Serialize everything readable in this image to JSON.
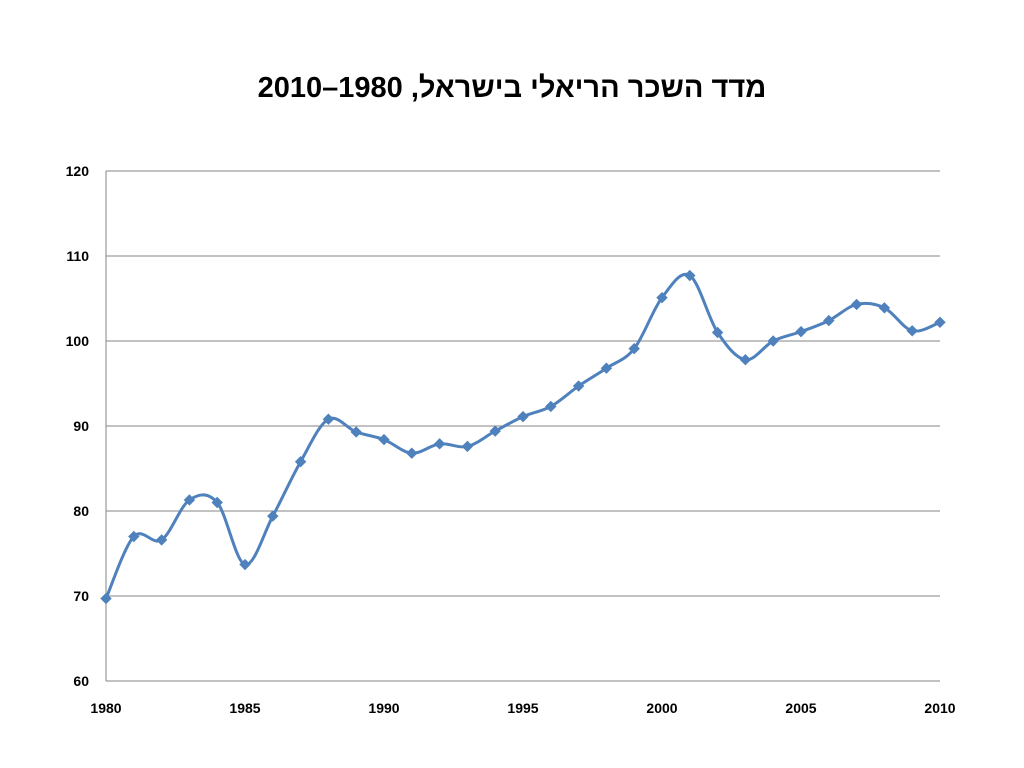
{
  "chart_data": {
    "type": "line",
    "title": "מדד השכר הריאלי בישראל, 1980–2010",
    "xlabel": "",
    "ylabel": "",
    "xlim": [
      1980,
      2010
    ],
    "ylim": [
      60,
      120
    ],
    "x_ticks": [
      1980,
      1985,
      1990,
      1995,
      2000,
      2005,
      2010
    ],
    "y_ticks": [
      60,
      70,
      80,
      90,
      100,
      110,
      120
    ],
    "grid": "horizontal",
    "legend": "none",
    "series": [
      {
        "color": "#4f81bd",
        "marker": "diamond",
        "smooth": true,
        "x": [
          1980,
          1981,
          1982,
          1983,
          1984,
          1985,
          1986,
          1987,
          1988,
          1989,
          1990,
          1991,
          1992,
          1993,
          1994,
          1995,
          1996,
          1997,
          1998,
          1999,
          2000,
          2001,
          2002,
          2003,
          2004,
          2005,
          2006,
          2007,
          2008,
          2009,
          2010
        ],
        "values": [
          69.7,
          77.0,
          76.6,
          81.3,
          81.0,
          73.7,
          79.4,
          85.8,
          90.8,
          89.3,
          88.4,
          86.8,
          87.9,
          87.6,
          89.4,
          91.1,
          92.3,
          94.7,
          96.8,
          99.1,
          105.1,
          107.7,
          101.0,
          97.8,
          100.0,
          101.1,
          102.4,
          104.3,
          103.9,
          101.2,
          102.2
        ]
      }
    ]
  }
}
